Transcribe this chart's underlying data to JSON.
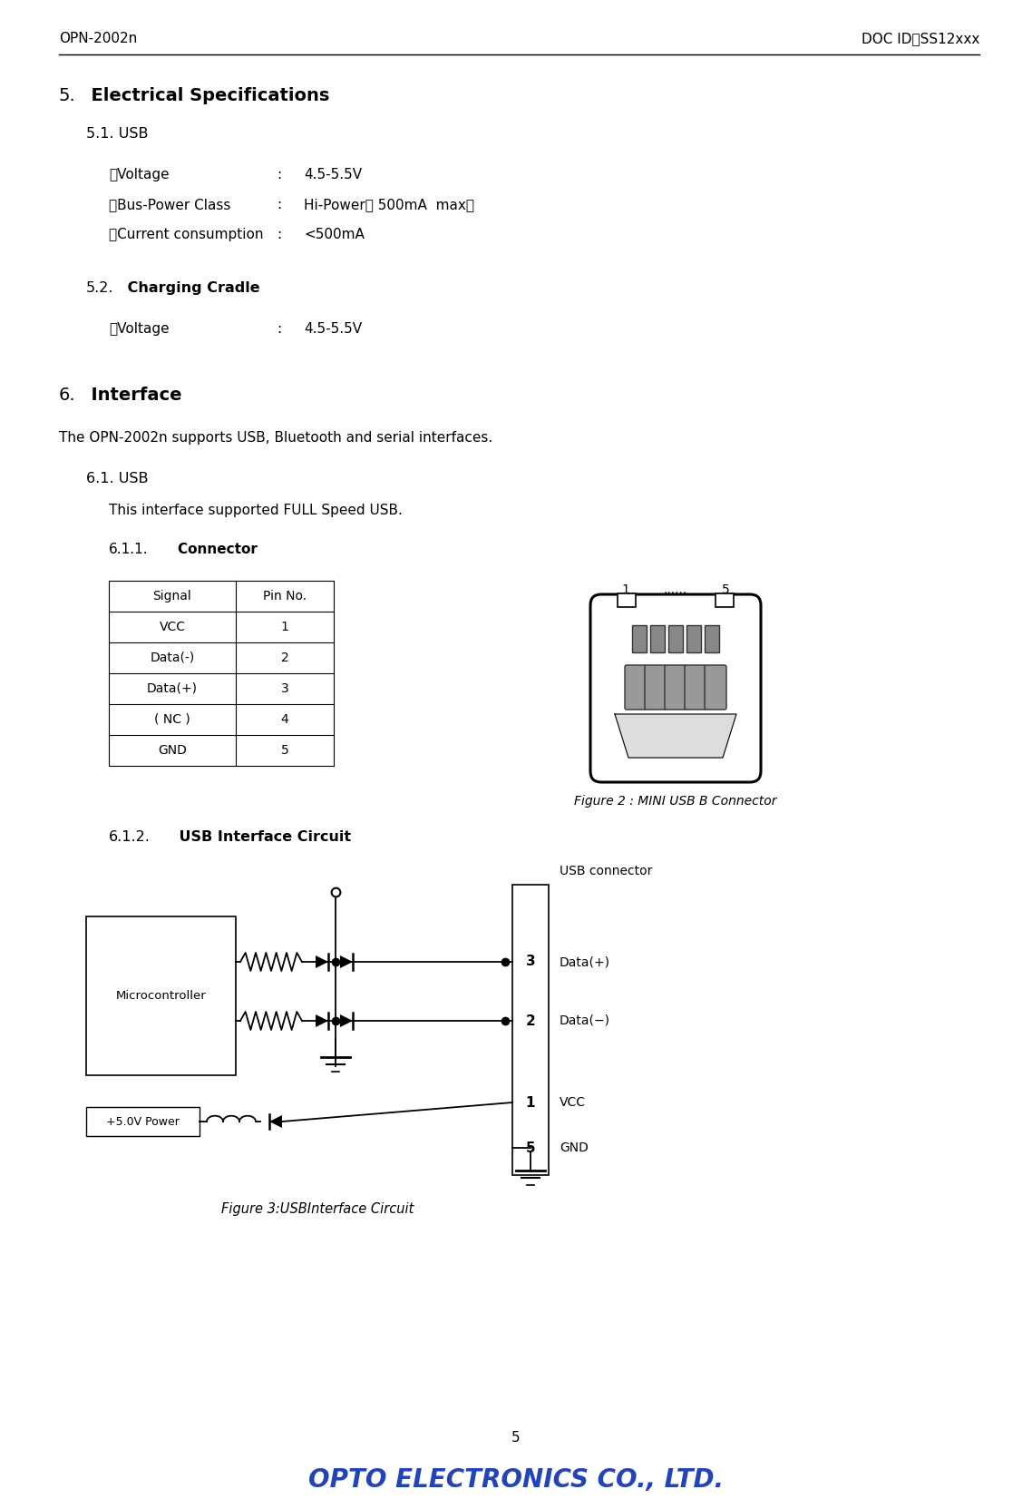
{
  "header_left": "OPN‑2002n",
  "header_right": "DOC ID：SS12xxx",
  "bg_color": "#ffffff",
  "section5_num": "5.",
  "section5_text": "  Electrical Specifications",
  "section51": "5.1. USB",
  "usb_labels": [
    "・Voltage",
    "・Bus-Power Class",
    "・Current consumption"
  ],
  "usb_colons": [
    ": ",
    ": ",
    ": "
  ],
  "usb_values": [
    "4.5-5.5V",
    "Hi-Power（ 500mA  max）",
    "<500mA"
  ],
  "section52_num": "5.2.",
  "section52_text": " Charging Cradle",
  "cradle_label": "・Voltage",
  "cradle_value": "4.5-5.5V",
  "section6_num": "6.",
  "section6_text": "  Interface",
  "section6_body": "The OPN-2002n supports USB, Bluetooth and serial interfaces.",
  "section61": "6.1. USB",
  "section61_body": "This interface supported FULL Speed USB.",
  "section611_num": "6.1.1.",
  "section611_text": "    Connector",
  "table_headers": [
    "Signal",
    "Pin No."
  ],
  "table_rows": [
    [
      "VCC",
      "1"
    ],
    [
      "Data(-)",
      "2"
    ],
    [
      "Data(+)",
      "3"
    ],
    [
      "( NC )",
      "4"
    ],
    [
      "GND",
      "5"
    ]
  ],
  "fig2_caption": "Figure 2 : MINI USB B Connector",
  "section612_num": "6.1.2.",
  "section612_text": "    USB Interface Circuit",
  "fig3_caption": "Figure 3:USBInterface Circuit",
  "page_num": "5",
  "logo_color": "#2244bb"
}
